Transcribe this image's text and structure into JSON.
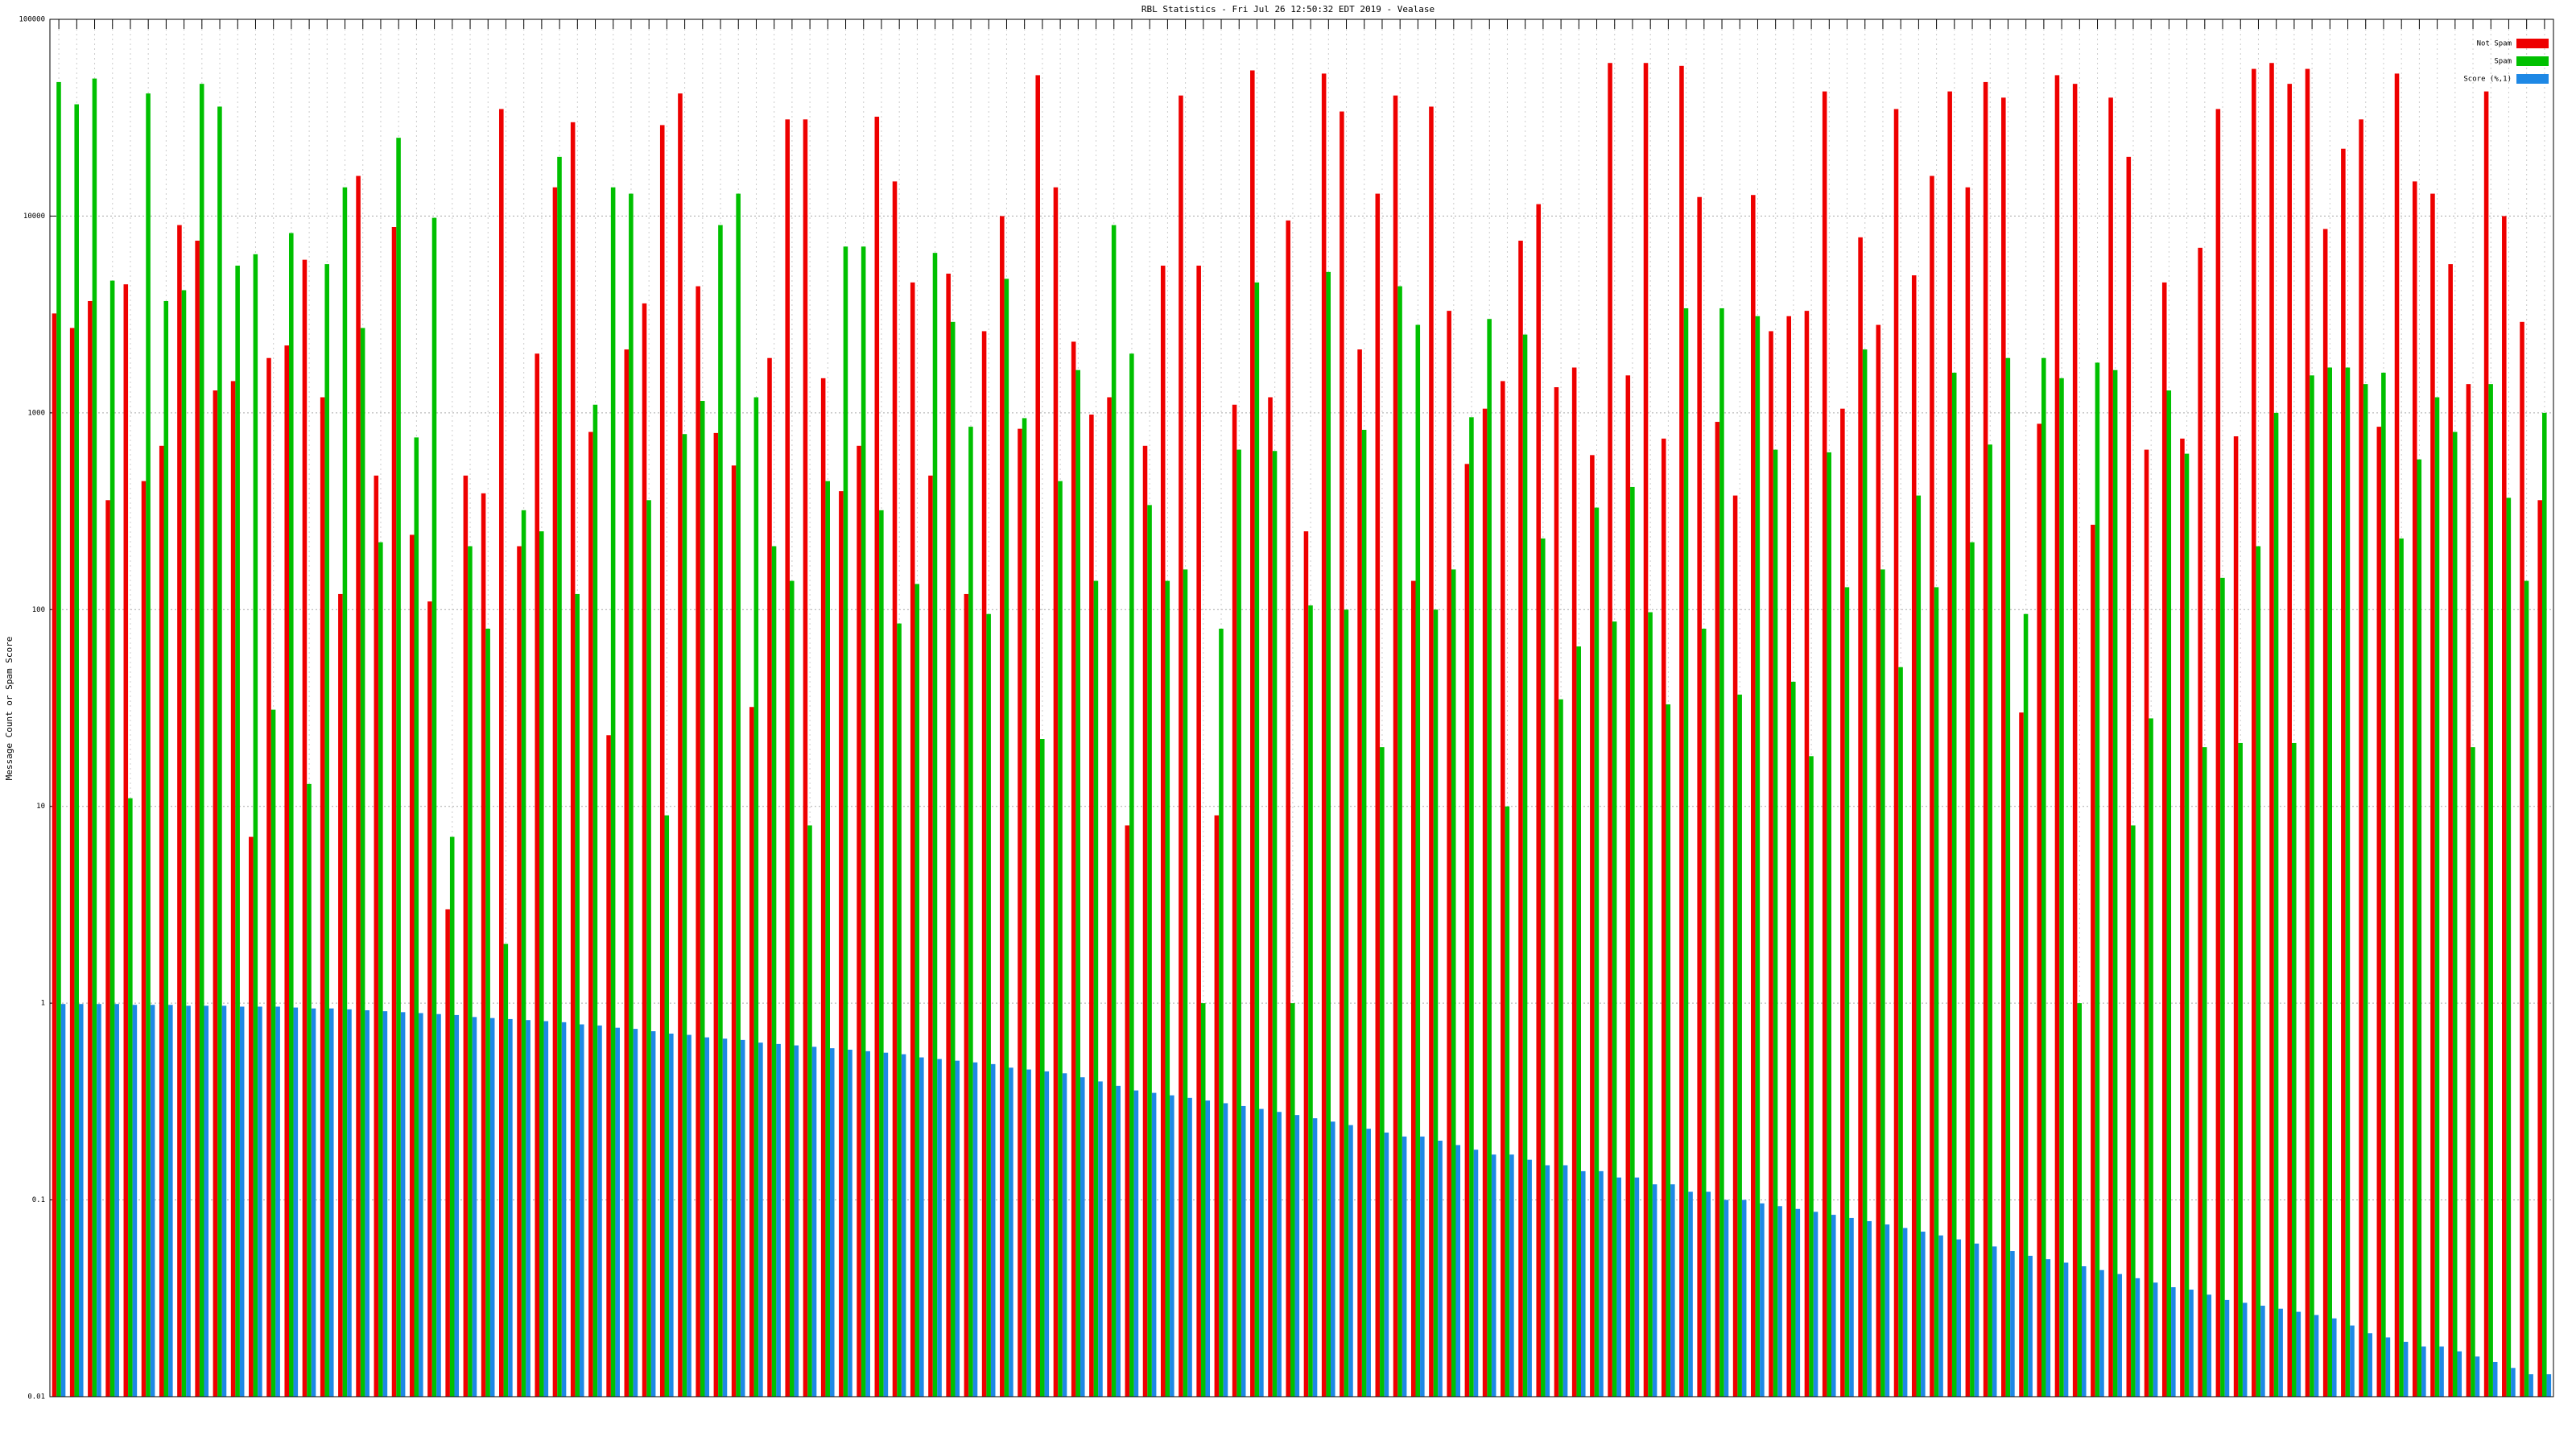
{
  "chart_data": {
    "type": "bar",
    "title": "RBL Statistics - Fri Jul 26 12:50:32 EDT 2019 - Vealase",
    "y_label": "Message Count or Spam Score",
    "log_scale": true,
    "grid": true,
    "legend": "top-right",
    "ylim": [
      0.01,
      100000
    ],
    "yticks": [
      0.01,
      0.1,
      1,
      10,
      100,
      1000,
      10000,
      100000
    ],
    "series": [
      {
        "name": "Not Spam",
        "color": "#ee0000",
        "values": [
          3200,
          2700,
          3700,
          360,
          4500,
          450,
          680,
          9000,
          7500,
          1300,
          1450,
          7,
          1900,
          2200,
          6000,
          1200,
          120,
          16000,
          480,
          8800,
          240,
          110,
          3,
          480,
          390,
          35000,
          210,
          2000,
          14000,
          30000,
          800,
          23,
          2100,
          3600,
          29000,
          42000,
          4400,
          790,
          540,
          32,
          1900,
          31000,
          31000,
          1500,
          400,
          680,
          32000,
          15000,
          4600,
          480,
          5100,
          120,
          2600,
          10000,
          830,
          52000,
          14000,
          2300,
          980,
          1200,
          8,
          680,
          5600,
          41000,
          5600,
          9,
          1100,
          55000,
          1200,
          9500,
          250,
          53000,
          34000,
          2100,
          13000,
          41000,
          140,
          36000,
          3300,
          550,
          1050,
          1450,
          7500,
          11500,
          1350,
          1700,
          610,
          60000,
          1550,
          60000,
          740,
          58000,
          12500,
          900,
          380,
          12800,
          2600,
          3100,
          3300,
          43000,
          1050,
          7800,
          2800,
          35000,
          5000,
          16000,
          43000,
          14000,
          48000,
          40000,
          30,
          880,
          52000,
          47000,
          270,
          40000,
          20000,
          650,
          4600,
          740,
          6900,
          35000,
          760,
          56000,
          60000,
          47000,
          56000,
          8600,
          22000,
          31000,
          850,
          53000,
          15000,
          13000,
          5700,
          1400,
          43000,
          10000,
          2900,
          360
        ]
      },
      {
        "name": "Spam",
        "color": "#00c000",
        "values": [
          48000,
          37000,
          50000,
          4700,
          11,
          42000,
          3700,
          4200,
          47000,
          36000,
          5600,
          6400,
          31,
          8200,
          13,
          5700,
          14000,
          2700,
          220,
          25000,
          750,
          9800,
          7,
          210,
          80,
          2,
          320,
          250,
          20000,
          120,
          1100,
          14000,
          13000,
          360,
          9,
          780,
          1150,
          9000,
          13000,
          1200,
          210,
          140,
          8,
          450,
          7000,
          7000,
          320,
          85,
          135,
          6500,
          2900,
          850,
          95,
          4800,
          940,
          22,
          450,
          1650,
          140,
          9000,
          2000,
          340,
          140,
          160,
          1,
          80,
          650,
          4600,
          640,
          1,
          105,
          5200,
          100,
          820,
          20,
          4400,
          2800,
          100,
          160,
          950,
          3000,
          10,
          2500,
          230,
          35,
          65,
          330,
          87,
          420,
          97,
          33,
          3400,
          80,
          3400,
          37,
          3100,
          650,
          43,
          18,
          630,
          130,
          2100,
          160,
          51,
          380,
          130,
          1600,
          220,
          690,
          1900,
          95,
          1900,
          1500,
          1,
          1800,
          1650,
          8,
          28,
          1300,
          620,
          20,
          145,
          21,
          210,
          1000,
          21,
          1550,
          1700,
          1700,
          1400,
          1600,
          230,
          580,
          1200,
          800,
          20,
          1400,
          370,
          140,
          1000
        ]
      },
      {
        "name": "Score (%,1)",
        "color": "#1e88e5",
        "values": [
          0.99,
          0.99,
          0.99,
          0.99,
          0.98,
          0.98,
          0.98,
          0.97,
          0.97,
          0.97,
          0.96,
          0.96,
          0.96,
          0.95,
          0.94,
          0.94,
          0.93,
          0.92,
          0.91,
          0.9,
          0.89,
          0.88,
          0.87,
          0.85,
          0.84,
          0.83,
          0.82,
          0.81,
          0.8,
          0.78,
          0.77,
          0.75,
          0.74,
          0.72,
          0.7,
          0.69,
          0.67,
          0.66,
          0.65,
          0.63,
          0.62,
          0.61,
          0.6,
          0.59,
          0.58,
          0.57,
          0.56,
          0.55,
          0.53,
          0.52,
          0.51,
          0.5,
          0.49,
          0.47,
          0.46,
          0.45,
          0.44,
          0.42,
          0.4,
          0.38,
          0.36,
          0.35,
          0.34,
          0.33,
          0.32,
          0.31,
          0.3,
          0.29,
          0.28,
          0.27,
          0.26,
          0.25,
          0.24,
          0.23,
          0.22,
          0.21,
          0.21,
          0.2,
          0.19,
          0.18,
          0.17,
          0.17,
          0.16,
          0.15,
          0.15,
          0.14,
          0.14,
          0.13,
          0.13,
          0.12,
          0.12,
          0.11,
          0.11,
          0.1,
          0.1,
          0.096,
          0.093,
          0.09,
          0.087,
          0.084,
          0.081,
          0.078,
          0.075,
          0.072,
          0.069,
          0.066,
          0.063,
          0.06,
          0.058,
          0.055,
          0.052,
          0.05,
          0.048,
          0.046,
          0.044,
          0.042,
          0.04,
          0.038,
          0.036,
          0.035,
          0.033,
          0.031,
          0.03,
          0.029,
          0.028,
          0.027,
          0.026,
          0.025,
          0.023,
          0.021,
          0.02,
          0.019,
          0.018,
          0.018,
          0.017,
          0.016,
          0.015,
          0.014,
          0.013,
          0.013
        ]
      }
    ]
  }
}
